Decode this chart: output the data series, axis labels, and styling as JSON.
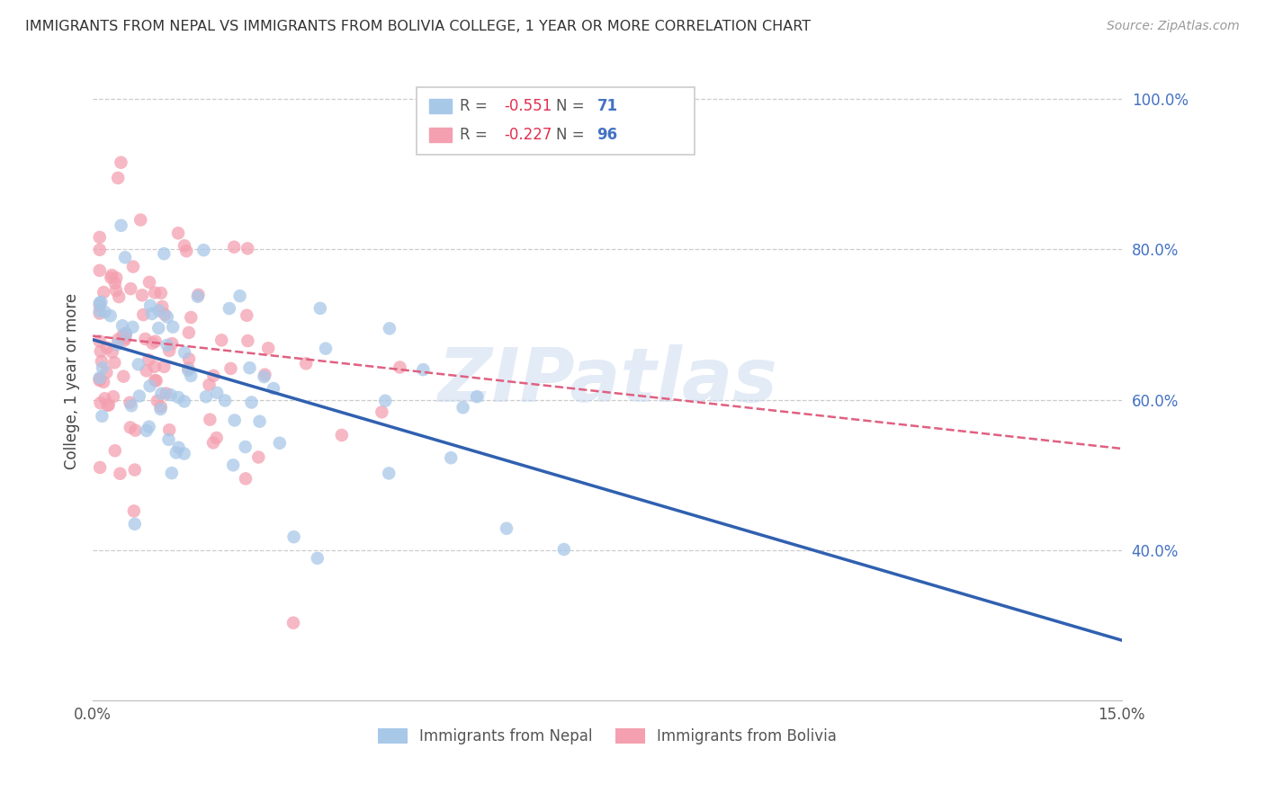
{
  "title": "IMMIGRANTS FROM NEPAL VS IMMIGRANTS FROM BOLIVIA COLLEGE, 1 YEAR OR MORE CORRELATION CHART",
  "source": "Source: ZipAtlas.com",
  "ylabel": "College, 1 year or more",
  "x_min": 0.0,
  "x_max": 0.15,
  "y_min": 0.2,
  "y_max": 1.05,
  "right_y_ticks": [
    1.0,
    0.8,
    0.6,
    0.4
  ],
  "right_y_labels": [
    "100.0%",
    "80.0%",
    "60.0%",
    "40.0%"
  ],
  "x_ticks": [
    0.0,
    0.05,
    0.1,
    0.15
  ],
  "x_labels": [
    "0.0%",
    "",
    "",
    "15.0%"
  ],
  "nepal_R": -0.551,
  "nepal_N": 71,
  "bolivia_R": -0.227,
  "bolivia_N": 96,
  "nepal_color": "#a8c8e8",
  "bolivia_color": "#f4a0b0",
  "nepal_line_color": "#3060b0",
  "bolivia_line_color": "#e06080",
  "watermark": "ZIPatlas",
  "nepal_line_x0": 0.0,
  "nepal_line_y0": 0.68,
  "nepal_line_x1": 0.15,
  "nepal_line_y1": 0.28,
  "bolivia_line_x0": 0.0,
  "bolivia_line_y0": 0.685,
  "bolivia_line_x1": 0.15,
  "bolivia_line_y1": 0.535
}
